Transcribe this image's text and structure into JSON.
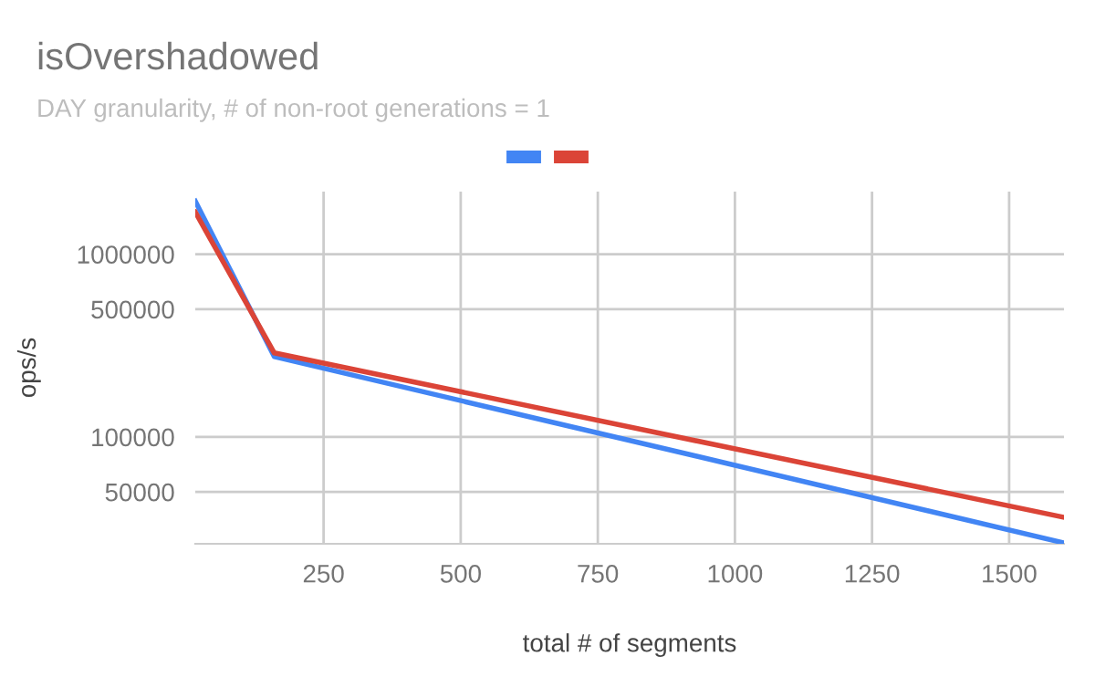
{
  "chart_data": {
    "type": "line",
    "title": "isOvershadowed",
    "subtitle": "DAY granularity, # of non-root generations = 1",
    "xlabel": "total # of segments",
    "ylabel": "ops/s",
    "x": [
      16,
      160,
      1600
    ],
    "series": [
      {
        "color": "#4285f4",
        "values": [
          1950000,
          275000,
          26300
        ]
      },
      {
        "color": "#db4437",
        "values": [
          1700000,
          288000,
          36300
        ]
      }
    ],
    "log": "y",
    "xlim": [
      16,
      1600
    ],
    "ylim": [
      26000,
      2200000
    ],
    "xticks": [
      250,
      500,
      750,
      1000,
      1250,
      1500
    ],
    "yticks": [
      50000,
      100000,
      500000,
      1000000
    ],
    "grid": true,
    "marker": "none",
    "line_style": "solid"
  }
}
